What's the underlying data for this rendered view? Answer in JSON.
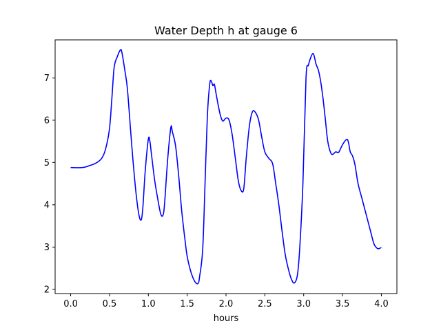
{
  "chart_data": {
    "type": "line",
    "title": "Water Depth h at gauge 6",
    "xlabel": "hours",
    "ylabel": "",
    "xlim": [
      -0.2,
      4.2
    ],
    "ylim": [
      1.9,
      7.9
    ],
    "xticks": [
      0.0,
      0.5,
      1.0,
      1.5,
      2.0,
      2.5,
      3.0,
      3.5,
      4.0
    ],
    "xtick_labels": [
      "0.0",
      "0.5",
      "1.0",
      "1.5",
      "2.0",
      "2.5",
      "3.0",
      "3.5",
      "4.0"
    ],
    "yticks": [
      2,
      3,
      4,
      5,
      6,
      7
    ],
    "ytick_labels": [
      "2",
      "3",
      "4",
      "5",
      "6",
      "7"
    ],
    "grid": false,
    "series": [
      {
        "color": "#0000ff",
        "x": [
          0.0,
          0.15,
          0.25,
          0.33,
          0.4,
          0.45,
          0.5,
          0.53,
          0.56,
          0.6,
          0.64,
          0.66,
          0.7,
          0.73,
          0.77,
          0.8,
          0.84,
          0.88,
          0.91,
          0.93,
          0.96,
          1.0,
          1.02,
          1.04,
          1.08,
          1.12,
          1.16,
          1.19,
          1.21,
          1.25,
          1.29,
          1.31,
          1.35,
          1.39,
          1.43,
          1.47,
          1.5,
          1.55,
          1.6,
          1.64,
          1.66,
          1.7,
          1.73,
          1.76,
          1.79,
          1.81,
          1.83,
          1.85,
          1.87,
          1.9,
          1.93,
          1.96,
          2.0,
          2.04,
          2.08,
          2.12,
          2.16,
          2.2,
          2.23,
          2.26,
          2.3,
          2.34,
          2.38,
          2.42,
          2.46,
          2.5,
          2.55,
          2.6,
          2.64,
          2.68,
          2.72,
          2.76,
          2.8,
          2.84,
          2.88,
          2.92,
          2.95,
          2.99,
          3.03,
          3.06,
          3.09,
          3.12,
          3.14,
          3.16,
          3.19,
          3.22,
          3.25,
          3.28,
          3.31,
          3.35,
          3.38,
          3.41,
          3.45,
          3.48,
          3.52,
          3.56,
          3.58,
          3.6,
          3.63,
          3.66,
          3.7,
          3.75,
          3.8,
          3.85,
          3.9,
          3.93,
          3.96,
          4.0
        ],
        "y": [
          4.88,
          4.88,
          4.93,
          4.99,
          5.1,
          5.32,
          5.8,
          6.5,
          7.25,
          7.5,
          7.66,
          7.6,
          7.15,
          6.75,
          5.8,
          5.1,
          4.3,
          3.75,
          3.65,
          3.95,
          4.8,
          5.55,
          5.5,
          5.2,
          4.6,
          4.15,
          3.78,
          3.76,
          4.05,
          5.1,
          5.83,
          5.72,
          5.4,
          4.7,
          3.85,
          3.2,
          2.78,
          2.4,
          2.18,
          2.14,
          2.3,
          2.95,
          4.5,
          6.1,
          6.85,
          6.93,
          6.82,
          6.85,
          6.65,
          6.35,
          6.1,
          5.98,
          6.05,
          6.0,
          5.65,
          5.1,
          4.55,
          4.32,
          4.4,
          5.1,
          5.85,
          6.2,
          6.18,
          6.0,
          5.6,
          5.25,
          5.1,
          4.97,
          4.5,
          4.0,
          3.4,
          2.85,
          2.5,
          2.25,
          2.15,
          2.35,
          3.0,
          4.5,
          7.0,
          7.3,
          7.48,
          7.58,
          7.48,
          7.32,
          7.18,
          6.9,
          6.5,
          6.0,
          5.5,
          5.22,
          5.2,
          5.25,
          5.24,
          5.35,
          5.48,
          5.55,
          5.44,
          5.25,
          5.15,
          4.95,
          4.5,
          4.15,
          3.8,
          3.45,
          3.1,
          3.0,
          2.96,
          2.99
        ]
      }
    ]
  },
  "colors": {
    "line": "#0000ff",
    "axes": "#000000",
    "background": "#ffffff"
  }
}
